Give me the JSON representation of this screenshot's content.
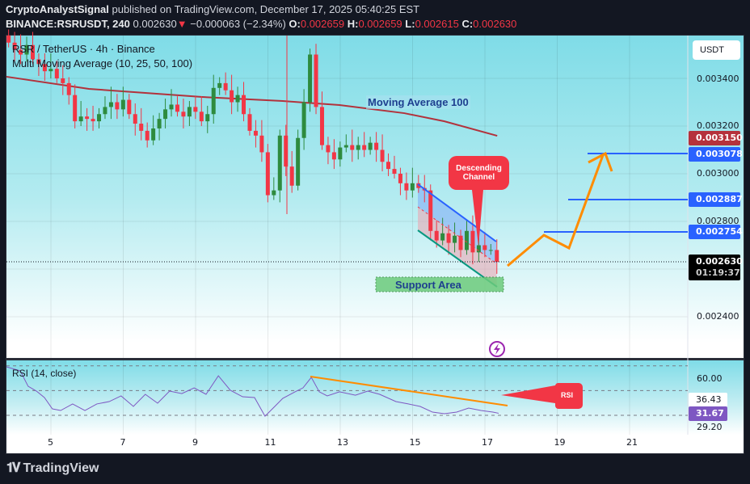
{
  "header": {
    "publisher": "CryptoAnalystSignal",
    "published_text": "published on TradingView.com, December 17, 2025 05:40:25 EST",
    "symbol": "BINANCE:RSRUSDT, 240",
    "last": "0.002630",
    "change": "−0.000063 (−2.34%)",
    "o_label": "O:",
    "o": "0.002659",
    "h_label": "H:",
    "h": "0.002659",
    "l_label": "L:",
    "l": "0.002615",
    "c_label": "C:",
    "c": "0.002630"
  },
  "legend": {
    "title": "RSR / TetherUS · 4h · Binance",
    "indicator": "Multi Moving Average (10, 25, 50, 100)",
    "rsi": "RSI (14, close)"
  },
  "price_axis": {
    "currency_button": "USDT",
    "ticks": [
      "0.003400",
      "0.003200",
      "0.003000",
      "0.002800",
      "0.002400"
    ],
    "badges": {
      "high_marker": "0.003150",
      "target3": "0.003078",
      "target2": "0.002887",
      "target1": "0.002754",
      "last": "0.002630",
      "countdown": "01:19:37"
    }
  },
  "rsi_axis": {
    "ticks": [
      "60.00",
      "29.20"
    ],
    "badges": {
      "upper": "36.43",
      "value": "31.67"
    }
  },
  "x_axis": {
    "ticks": [
      "5",
      "7",
      "9",
      "11",
      "13",
      "15",
      "17",
      "19",
      "21"
    ]
  },
  "annotations": {
    "ma_label": "Moving Average 100",
    "callout": "Descending Channel",
    "support": "Support Area",
    "rsi_callout": "RSI"
  },
  "colors": {
    "up": "#2e8b3e",
    "down": "#f23645",
    "ma100": "#b2323c",
    "target_line": "#2962ff",
    "projection": "#ff8c00",
    "rsi_line": "#7e57c2",
    "badge_red": "#b5323c",
    "badge_blue": "#2962ff",
    "badge_purple": "#7e57c2"
  },
  "footer": {
    "brand": "TradingView"
  },
  "chart_data": {
    "type": "candlestick",
    "interval": "4h",
    "xlabel": "",
    "ylabel": "",
    "closes": [
      0.00355,
      0.00352,
      0.0035,
      0.00354,
      0.00348,
      0.00346,
      0.00343,
      0.00344,
      0.0034,
      0.00338,
      0.00333,
      0.00322,
      0.00324,
      0.00323,
      0.00322,
      0.00325,
      0.00328,
      0.0033,
      0.00327,
      0.00331,
      0.00325,
      0.00321,
      0.00318,
      0.00314,
      0.00319,
      0.00323,
      0.00327,
      0.00329,
      0.00326,
      0.00324,
      0.00328,
      0.00326,
      0.00322,
      0.00325,
      0.00336,
      0.00338,
      0.00335,
      0.0033,
      0.00333,
      0.00325,
      0.00318,
      0.00316,
      0.00309,
      0.00291,
      0.00293,
      0.00316,
      0.00303,
      0.00295,
      0.00315,
      0.0033,
      0.0035,
      0.00328,
      0.00312,
      0.00309,
      0.00306,
      0.00311,
      0.00312,
      0.0031,
      0.00312,
      0.0031,
      0.00313,
      0.0031,
      0.00305,
      0.00302,
      0.003,
      0.00296,
      0.00293,
      0.00296,
      0.00294,
      0.00293,
      0.00276,
      0.00272,
      0.00275,
      0.00271,
      0.00274,
      0.00268,
      0.00276,
      0.00267,
      0.0027,
      0.00268,
      0.00268,
      0.00263
    ],
    "ma100": [
      [
        3.77,
        0.003407
      ],
      [
        6.05,
        0.003356
      ],
      [
        9.18,
        0.003322
      ],
      [
        11.41,
        0.003305
      ],
      [
        12.98,
        0.003288
      ],
      [
        14.77,
        0.003254
      ],
      [
        15.88,
        0.00322
      ],
      [
        17.34,
        0.003159
      ]
    ],
    "rsi": [
      [
        3.77,
        69.2
      ],
      [
        4.15,
        66
      ],
      [
        4.37,
        53.5
      ],
      [
        4.6,
        49.6
      ],
      [
        4.82,
        44.4
      ],
      [
        5.04,
        35.2
      ],
      [
        5.27,
        33.9
      ],
      [
        5.6,
        39.2
      ],
      [
        5.94,
        33.9
      ],
      [
        6.27,
        39.2
      ],
      [
        6.61,
        41.1
      ],
      [
        6.94,
        45.7
      ],
      [
        7.28,
        37.2
      ],
      [
        7.61,
        47
      ],
      [
        7.95,
        39.8
      ],
      [
        8.28,
        49.6
      ],
      [
        8.62,
        47.6
      ],
      [
        8.96,
        52.2
      ],
      [
        9.29,
        47
      ],
      [
        9.63,
        62
      ],
      [
        9.96,
        50.3
      ],
      [
        10.3,
        45
      ],
      [
        10.63,
        44.4
      ],
      [
        10.92,
        29.3
      ],
      [
        11.19,
        37.2
      ],
      [
        11.41,
        43.7
      ],
      [
        11.75,
        49
      ],
      [
        11.97,
        52.2
      ],
      [
        12.2,
        60.7
      ],
      [
        12.42,
        49
      ],
      [
        12.64,
        45.7
      ],
      [
        12.98,
        49
      ],
      [
        13.42,
        46.3
      ],
      [
        13.76,
        49.6
      ],
      [
        14.09,
        47
      ],
      [
        14.54,
        41.1
      ],
      [
        14.88,
        39.2
      ],
      [
        15.21,
        37.2
      ],
      [
        15.55,
        32.6
      ],
      [
        15.88,
        31.3
      ],
      [
        16.22,
        32.6
      ],
      [
        16.55,
        35.9
      ],
      [
        16.89,
        33.9
      ],
      [
        17.22,
        32.6
      ],
      [
        17.38,
        31.67
      ]
    ],
    "rsi_levels": [
      70,
      50,
      30
    ]
  }
}
